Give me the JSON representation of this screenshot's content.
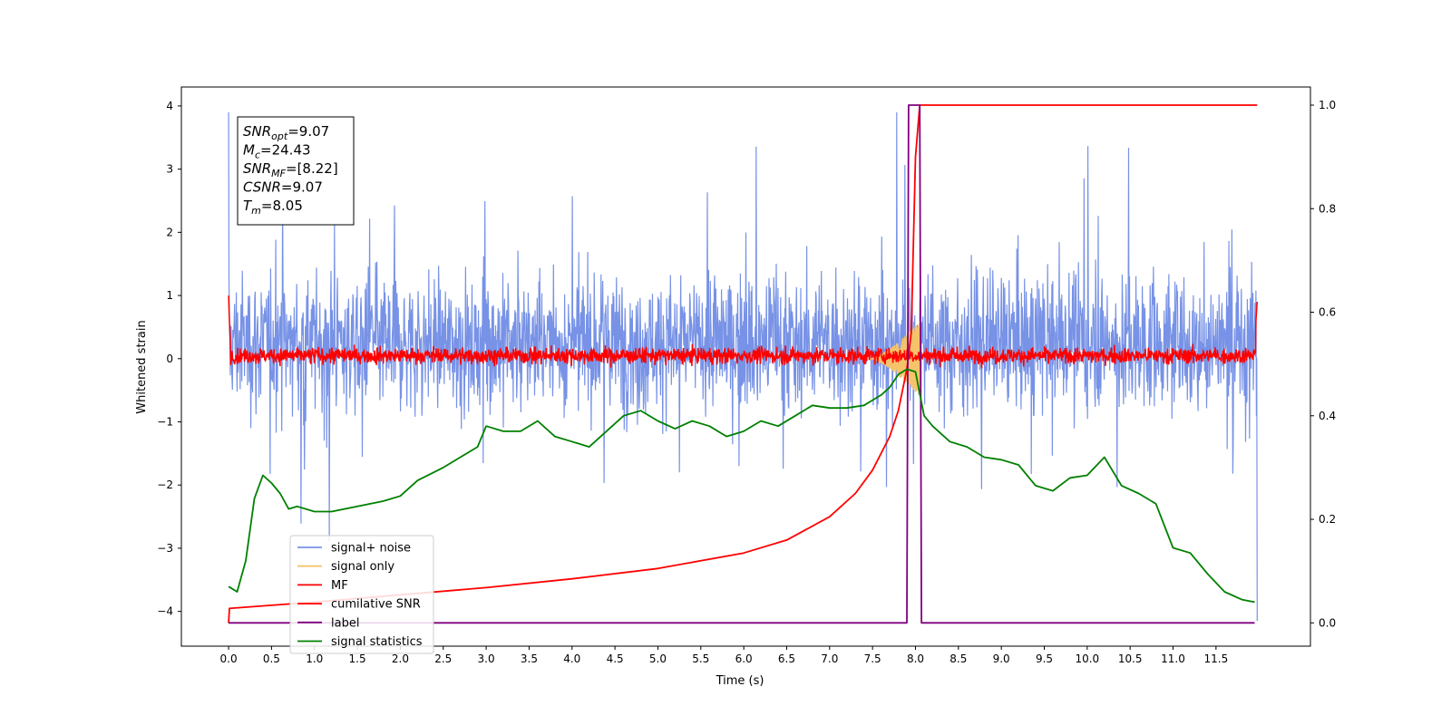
{
  "chart_data": {
    "type": "line",
    "xlabel": "Time (s)",
    "ylabel": "Whitened strain",
    "xlim": [
      -0.55,
      12.6
    ],
    "ylim": [
      -4.55,
      4.3
    ],
    "y2lim": [
      -0.045,
      1.035
    ],
    "x_ticks": [
      0.0,
      0.5,
      1.0,
      1.5,
      2.0,
      2.5,
      3.0,
      3.5,
      4.0,
      4.5,
      5.0,
      5.5,
      6.0,
      6.5,
      7.0,
      7.5,
      8.0,
      8.5,
      9.0,
      9.5,
      10.0,
      10.5,
      11.0,
      11.5
    ],
    "x_tick_labels": [
      "0.0",
      "0.5",
      "1.0",
      "1.5",
      "2.0",
      "2.5",
      "3.0",
      "3.5",
      "4.0",
      "4.5",
      "5.0",
      "5.5",
      "6.0",
      "6.5",
      "7.0",
      "7.5",
      "8.0",
      "8.5",
      "9.0",
      "9.5",
      "10.0",
      "10.5",
      "11.0",
      "11.5"
    ],
    "y_ticks": [
      -4,
      -3,
      -2,
      -1,
      0,
      1,
      2,
      3,
      4
    ],
    "y_tick_labels": [
      "−4",
      "−3",
      "−2",
      "−1",
      "0",
      "1",
      "2",
      "3",
      "4"
    ],
    "y2_ticks": [
      0.0,
      0.2,
      0.4,
      0.6,
      0.8,
      1.0
    ],
    "y2_tick_labels": [
      "0.0",
      "0.2",
      "0.4",
      "0.6",
      "0.8",
      "1.0"
    ],
    "grid": false,
    "legend_position": "lower-left",
    "annotation": {
      "lines": [
        {
          "sym": "SNR",
          "sub": "opt",
          "val": "=9.07"
        },
        {
          "sym": "M",
          "sub": "c",
          "val": "=24.43"
        },
        {
          "sym": "SNR",
          "sub": "MF",
          "val": "=[8.22]"
        },
        {
          "sym": "CSNR",
          "sub": "",
          "val": "=9.07"
        },
        {
          "sym": "T",
          "sub": "m",
          "val": "=8.05"
        }
      ]
    },
    "series": [
      {
        "name": "signal+ noise",
        "color": "#7792e6",
        "axis": "left",
        "x_range": [
          0.0,
          11.98
        ],
        "approx_band": {
          "lower_typical": -1.8,
          "upper_typical": 2.0,
          "extreme_high": 3.9,
          "extreme_low": -4.2
        }
      },
      {
        "name": "signal only",
        "color": "#f5c36b",
        "axis": "left",
        "x_range": [
          7.45,
          8.05
        ],
        "approx_peak_amplitude": 0.6
      },
      {
        "name": "MF",
        "color": "#ff0000",
        "axis": "left",
        "x_range": [
          0.0,
          11.98
        ],
        "approx_band": {
          "lower_typical": -0.15,
          "upper_typical": 0.35
        }
      },
      {
        "name": "cumilative SNR",
        "color": "#ff0000",
        "axis": "right",
        "x": [
          0.0,
          0.01,
          1.0,
          2.0,
          3.0,
          4.0,
          5.0,
          6.0,
          6.5,
          7.0,
          7.3,
          7.5,
          7.7,
          7.8,
          7.9,
          7.95,
          8.0,
          8.05,
          8.1,
          11.98
        ],
        "y": [
          0.0,
          0.028,
          0.04,
          0.054,
          0.068,
          0.085,
          0.105,
          0.135,
          0.16,
          0.205,
          0.25,
          0.295,
          0.36,
          0.41,
          0.49,
          0.56,
          0.9,
          1.0,
          1.0,
          1.0
        ]
      },
      {
        "name": "label",
        "color": "#800080",
        "axis": "right",
        "x": [
          0.0,
          7.9,
          7.92,
          8.05,
          8.07,
          11.95
        ],
        "y": [
          0.0,
          0.0,
          1.0,
          1.0,
          0.0,
          0.0
        ]
      },
      {
        "name": "signal statistics",
        "color": "#008000",
        "axis": "right",
        "x": [
          0.0,
          0.1,
          0.2,
          0.3,
          0.4,
          0.5,
          0.6,
          0.7,
          0.8,
          1.0,
          1.2,
          1.5,
          1.8,
          2.0,
          2.2,
          2.5,
          2.7,
          2.9,
          3.0,
          3.2,
          3.4,
          3.6,
          3.8,
          4.0,
          4.2,
          4.4,
          4.6,
          4.8,
          5.0,
          5.2,
          5.4,
          5.6,
          5.8,
          6.0,
          6.2,
          6.4,
          6.6,
          6.8,
          7.0,
          7.2,
          7.4,
          7.5,
          7.6,
          7.7,
          7.8,
          7.9,
          8.0,
          8.1,
          8.2,
          8.4,
          8.6,
          8.8,
          9.0,
          9.2,
          9.4,
          9.6,
          9.8,
          10.0,
          10.2,
          10.4,
          10.6,
          10.8,
          11.0,
          11.2,
          11.4,
          11.6,
          11.8,
          11.95
        ],
        "y": [
          0.07,
          0.06,
          0.12,
          0.24,
          0.285,
          0.27,
          0.25,
          0.22,
          0.225,
          0.215,
          0.215,
          0.225,
          0.235,
          0.245,
          0.275,
          0.3,
          0.32,
          0.34,
          0.38,
          0.37,
          0.37,
          0.39,
          0.36,
          0.35,
          0.34,
          0.37,
          0.4,
          0.41,
          0.39,
          0.375,
          0.39,
          0.38,
          0.36,
          0.37,
          0.39,
          0.38,
          0.4,
          0.42,
          0.415,
          0.415,
          0.42,
          0.43,
          0.44,
          0.455,
          0.48,
          0.49,
          0.485,
          0.4,
          0.38,
          0.35,
          0.34,
          0.32,
          0.315,
          0.305,
          0.265,
          0.255,
          0.28,
          0.285,
          0.32,
          0.265,
          0.25,
          0.23,
          0.145,
          0.135,
          0.095,
          0.06,
          0.045,
          0.04
        ]
      }
    ]
  }
}
